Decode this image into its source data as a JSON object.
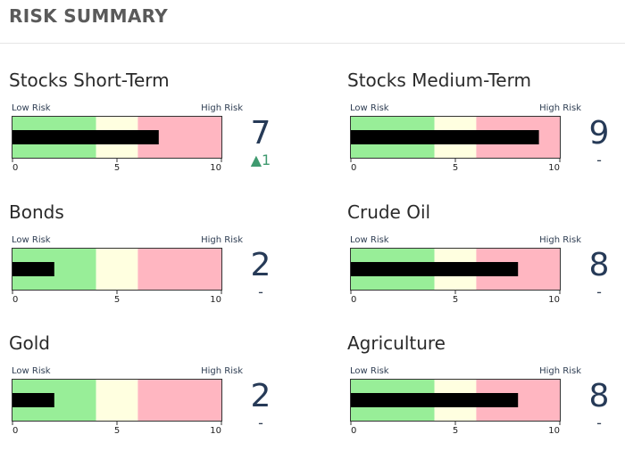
{
  "header": {
    "title": "RISK SUMMARY"
  },
  "gauge_labels": {
    "low": "Low Risk",
    "high": "High Risk"
  },
  "colors": {
    "low_zone": "#98ee98",
    "mid_zone": "#ffffe0",
    "high_zone": "#ffb6c1",
    "bar": "#000000",
    "up": "#3f9a6f",
    "score": "#263a57"
  },
  "scale": {
    "min": 0,
    "max": 10,
    "ticks": [
      0,
      5,
      10
    ],
    "low_until": 4,
    "mid_until": 6
  },
  "cards": [
    {
      "title": "Stocks Short-Term",
      "value": 7,
      "score": "7",
      "change": "▲1",
      "trend": "up"
    },
    {
      "title": "Stocks Medium-Term",
      "value": 9,
      "score": "9",
      "change": "-",
      "trend": "flat"
    },
    {
      "title": "Bonds",
      "value": 2,
      "score": "2",
      "change": "-",
      "trend": "flat"
    },
    {
      "title": "Crude Oil",
      "value": 8,
      "score": "8",
      "change": "-",
      "trend": "flat"
    },
    {
      "title": "Gold",
      "value": 2,
      "score": "2",
      "change": "-",
      "trend": "flat"
    },
    {
      "title": "Agriculture",
      "value": 8,
      "score": "8",
      "change": "-",
      "trend": "flat"
    }
  ]
}
